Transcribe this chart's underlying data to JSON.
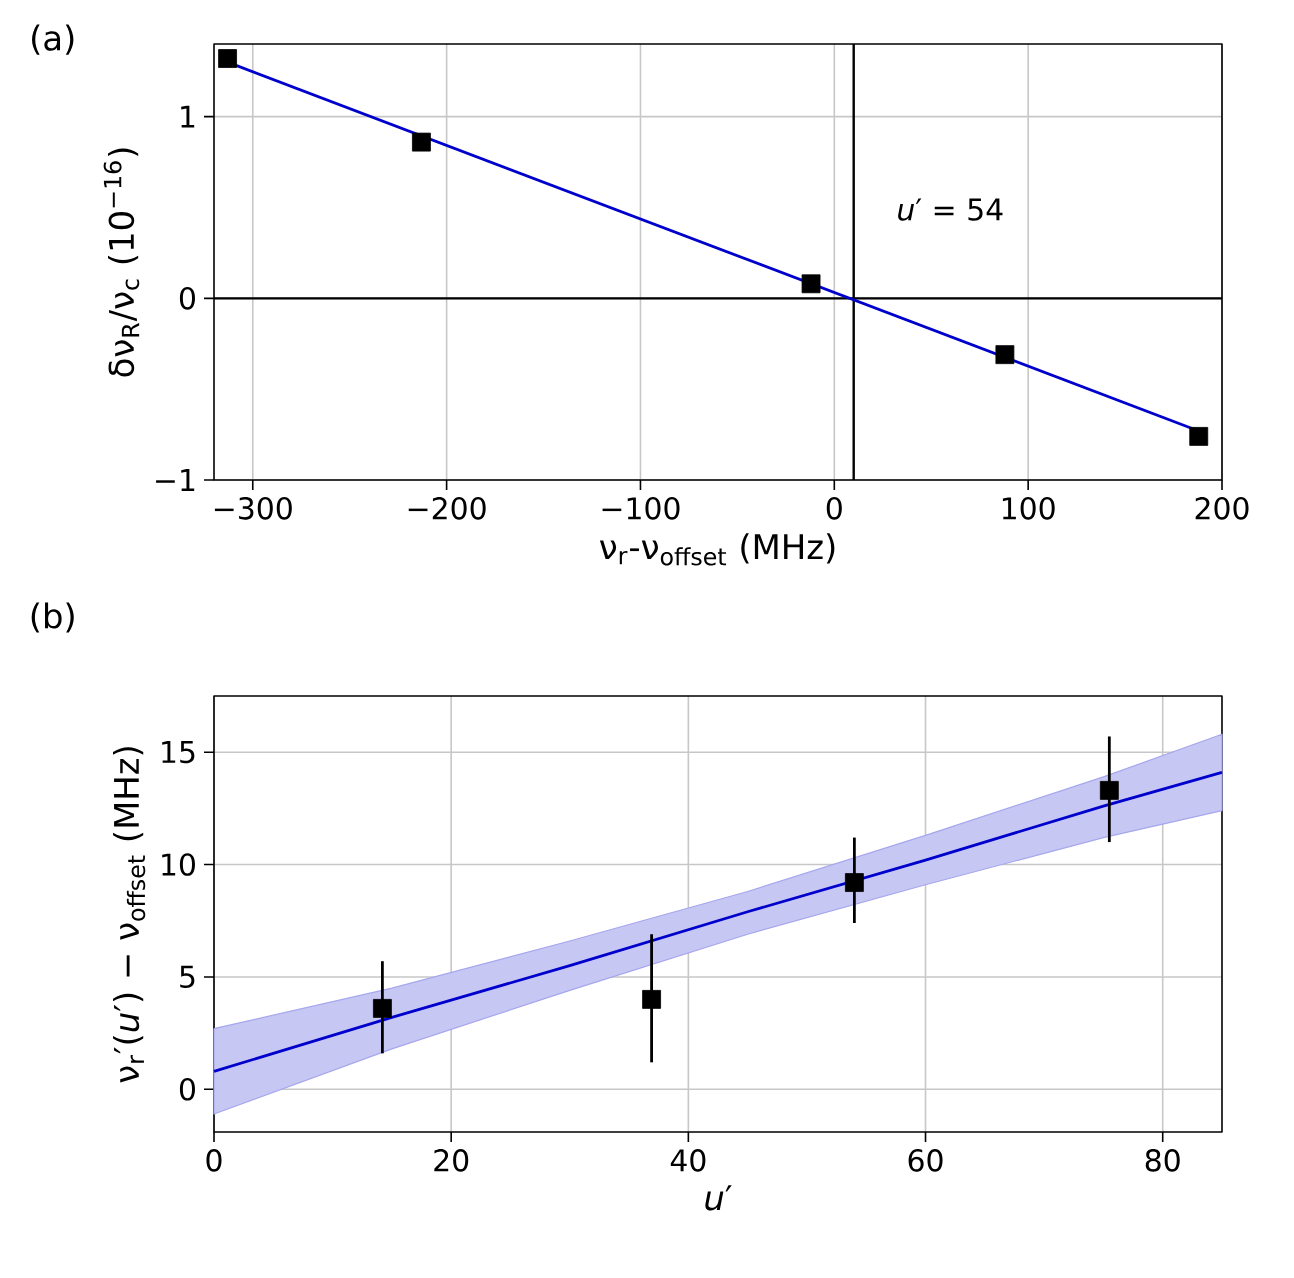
{
  "chart_data": [
    {
      "type": "scatter",
      "title": "(a)",
      "xlabel": "ν$_{r}$-ν$_{offset}$ (MHz)",
      "ylabel": "δν$_{R}$/ν$_{c}$ (10$^{−16}$)",
      "xlim": [
        -320,
        200
      ],
      "ylim": [
        -1,
        1.4
      ],
      "xticks": [
        {
          "value": -300,
          "label": "−300"
        },
        {
          "value": -200,
          "label": "−200"
        },
        {
          "value": -100,
          "label": "−100"
        },
        0,
        100,
        200
      ],
      "yticks": [
        {
          "value": -1,
          "label": "−1"
        },
        0,
        1
      ],
      "grid": true,
      "annotations": [
        "*u*′ = 54"
      ],
      "ref_lines": [
        {
          "axis": "y",
          "value": 0,
          "color": "#000000"
        },
        {
          "axis": "x",
          "value": 10,
          "color": "#000000"
        }
      ],
      "series": [
        {
          "color": "#000000",
          "marker": "square",
          "x": [
            -313,
            -213,
            -12,
            88,
            188
          ],
          "values": [
            1.32,
            0.86,
            0.08,
            -0.31,
            -0.76
          ]
        },
        {
          "type": "line",
          "color": "#0000cc",
          "marker": "none",
          "x": [
            -313,
            188
          ],
          "values": [
            1.3,
            -0.73
          ]
        }
      ]
    },
    {
      "type": "scatter",
      "title": "(b)",
      "xlabel": "*u*′",
      "ylabel": "ν$_{r}$′(*u*′) − ν$_{offset}$ (MHz)",
      "xlim": [
        0,
        85
      ],
      "ylim": [
        -1.9,
        17.5
      ],
      "xticks": [
        0,
        20,
        40,
        60,
        80
      ],
      "yticks": [
        0,
        5,
        10,
        15
      ],
      "grid": true,
      "series": [
        {
          "color": "#000000",
          "marker": "square",
          "x": [
            14.2,
            36.9,
            54.0,
            75.5
          ],
          "values": [
            3.6,
            4.0,
            9.2,
            13.3
          ],
          "errors": [
            [
              1.6,
              5.7
            ],
            [
              1.2,
              6.9
            ],
            [
              7.4,
              11.2
            ],
            [
              11.0,
              15.7
            ]
          ]
        },
        {
          "type": "line",
          "color": "#0000cc",
          "marker": "none",
          "x": [
            0,
            15,
            30,
            45,
            60,
            75,
            85
          ],
          "values": [
            0.8,
            3.2,
            5.5,
            7.9,
            10.2,
            12.6,
            14.1
          ],
          "lower": [
            -1.1,
            1.8,
            4.4,
            6.9,
            9.1,
            11.2,
            12.4
          ],
          "upper": [
            2.7,
            4.5,
            6.6,
            8.8,
            11.3,
            13.9,
            15.8
          ]
        }
      ]
    }
  ]
}
